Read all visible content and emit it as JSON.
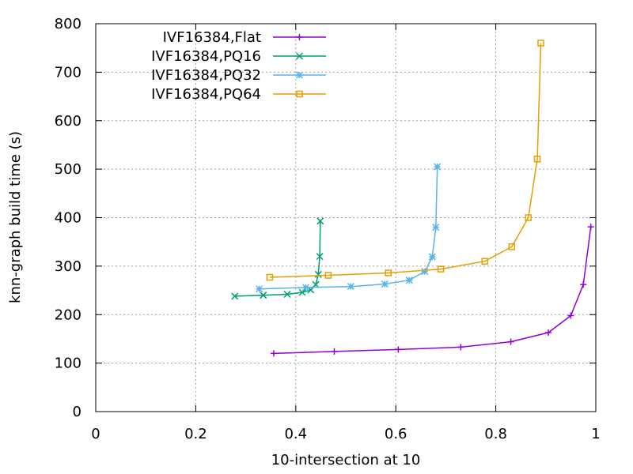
{
  "chart_data": {
    "type": "line",
    "xlabel": "10-intersection at 10",
    "ylabel": "knn-graph build time (s)",
    "xlim": [
      0,
      1
    ],
    "ylim": [
      0,
      800
    ],
    "xticks": [
      0,
      0.2,
      0.4,
      0.6,
      0.8,
      1
    ],
    "xtick_labels": [
      "0",
      "0.2",
      "0.4",
      "0.6",
      "0.8",
      "1"
    ],
    "yticks": [
      0,
      100,
      200,
      300,
      400,
      500,
      600,
      700,
      800
    ],
    "ytick_labels": [
      "0",
      "100",
      "200",
      "300",
      "400",
      "500",
      "600",
      "700",
      "800"
    ],
    "grid": true,
    "legend_position": "top-left",
    "series": [
      {
        "name": "IVF16384,Flat",
        "color": "#9400d3",
        "marker": "plus",
        "points": [
          [
            0.356,
            120
          ],
          [
            0.477,
            124
          ],
          [
            0.605,
            128
          ],
          [
            0.73,
            133
          ],
          [
            0.83,
            144
          ],
          [
            0.905,
            163
          ],
          [
            0.95,
            198
          ],
          [
            0.975,
            262
          ],
          [
            0.99,
            381
          ]
        ]
      },
      {
        "name": "IVF16384,PQ16",
        "color": "#009e73",
        "marker": "x",
        "points": [
          [
            0.278,
            238
          ],
          [
            0.335,
            240
          ],
          [
            0.383,
            242
          ],
          [
            0.413,
            246
          ],
          [
            0.43,
            251
          ],
          [
            0.44,
            262
          ],
          [
            0.445,
            283
          ],
          [
            0.448,
            320
          ],
          [
            0.449,
            393
          ]
        ]
      },
      {
        "name": "IVF16384,PQ32",
        "color": "#56b4e9",
        "marker": "asterisk",
        "points": [
          [
            0.327,
            253
          ],
          [
            0.42,
            256
          ],
          [
            0.51,
            258
          ],
          [
            0.578,
            263
          ],
          [
            0.627,
            271
          ],
          [
            0.658,
            289
          ],
          [
            0.673,
            319
          ],
          [
            0.68,
            380
          ],
          [
            0.683,
            505
          ]
        ]
      },
      {
        "name": "IVF16384,PQ64",
        "color": "#e69f00",
        "marker": "box",
        "points": [
          [
            0.348,
            277
          ],
          [
            0.465,
            281
          ],
          [
            0.585,
            286
          ],
          [
            0.69,
            294
          ],
          [
            0.778,
            310
          ],
          [
            0.832,
            340
          ],
          [
            0.865,
            400
          ],
          [
            0.883,
            521
          ],
          [
            0.89,
            760
          ]
        ]
      }
    ]
  }
}
